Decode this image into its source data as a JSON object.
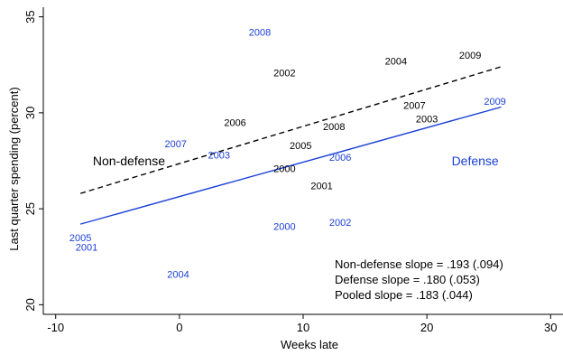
{
  "chart_data": {
    "type": "scatter",
    "xlabel": "Weeks late",
    "ylabel": "Last quarter spending (percent)",
    "xlim": [
      -11,
      31
    ],
    "ylim": [
      19.5,
      35.5
    ],
    "x_ticks": [
      -10,
      0,
      10,
      20,
      30
    ],
    "y_ticks": [
      20,
      25,
      30,
      35
    ],
    "grid": false,
    "colors": {
      "nondefense": "#000000",
      "defense": "#1a3fd6"
    },
    "series": [
      {
        "name": "Non-defense",
        "color_key": "nondefense",
        "points": [
          {
            "x": 8.5,
            "y": 32.1,
            "label": "2002"
          },
          {
            "x": 17.5,
            "y": 32.7,
            "label": "2004"
          },
          {
            "x": 23.5,
            "y": 33.0,
            "label": "2009"
          },
          {
            "x": 19.0,
            "y": 30.4,
            "label": "2007"
          },
          {
            "x": 4.5,
            "y": 29.5,
            "label": "2006"
          },
          {
            "x": 12.5,
            "y": 29.3,
            "label": "2008"
          },
          {
            "x": 20.0,
            "y": 29.7,
            "label": "2003"
          },
          {
            "x": 9.8,
            "y": 28.3,
            "label": "2005"
          },
          {
            "x": 8.5,
            "y": 27.1,
            "label": "2000"
          },
          {
            "x": 11.5,
            "y": 26.2,
            "label": "2001"
          }
        ],
        "fit": {
          "x": [
            -8,
            26
          ],
          "y": [
            25.8,
            32.4
          ],
          "style": "dashed"
        },
        "series_label": {
          "text": "Non-defense",
          "x": -7.0,
          "y": 27.5
        }
      },
      {
        "name": "Defense",
        "color_key": "defense",
        "points": [
          {
            "x": 6.5,
            "y": 34.2,
            "label": "2008"
          },
          {
            "x": -0.3,
            "y": 28.4,
            "label": "2007"
          },
          {
            "x": 3.2,
            "y": 27.8,
            "label": "2003"
          },
          {
            "x": 13.0,
            "y": 27.7,
            "label": "2006"
          },
          {
            "x": 25.5,
            "y": 30.6,
            "label": "2009"
          },
          {
            "x": 8.5,
            "y": 24.1,
            "label": "2000"
          },
          {
            "x": 13.0,
            "y": 24.3,
            "label": "2002"
          },
          {
            "x": -8.0,
            "y": 23.5,
            "label": "2005"
          },
          {
            "x": -7.5,
            "y": 23.0,
            "label": "2001"
          },
          {
            "x": -0.1,
            "y": 21.6,
            "label": "2004"
          }
        ],
        "fit": {
          "x": [
            -8,
            26
          ],
          "y": [
            24.2,
            30.3
          ],
          "style": "solid"
        },
        "series_label": {
          "text": "Defense",
          "x": 22.0,
          "y": 27.5
        }
      }
    ],
    "annotations": [
      "Non-defense slope = .193 (.094)",
      "Defense slope = .180 (.053)",
      "Pooled slope = .183 (.044)"
    ]
  }
}
